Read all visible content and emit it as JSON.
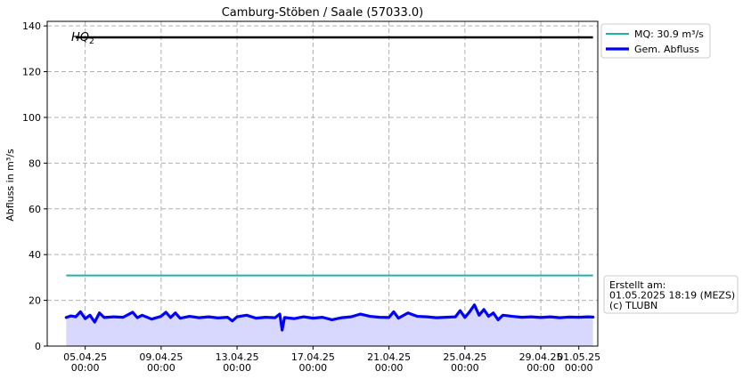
{
  "chart_data": {
    "type": "line",
    "title": "Camburg-Stöben / Saale (57033.0)",
    "xlabel": "",
    "ylabel": "Abfluss in m³/s",
    "ylim": [
      0,
      142
    ],
    "yticks": [
      0,
      20,
      40,
      60,
      80,
      100,
      120,
      140
    ],
    "xlim": [
      "2025-04-03T00:00",
      "2025-05-02T00:00"
    ],
    "xticks": [
      {
        "date": "2025-04-05T00:00",
        "label_date": "05.04.25",
        "label_time": "00:00"
      },
      {
        "date": "2025-04-09T00:00",
        "label_date": "09.04.25",
        "label_time": "00:00"
      },
      {
        "date": "2025-04-13T00:00",
        "label_date": "13.04.25",
        "label_time": "00:00"
      },
      {
        "date": "2025-04-17T00:00",
        "label_date": "17.04.25",
        "label_time": "00:00"
      },
      {
        "date": "2025-04-21T00:00",
        "label_date": "21.04.25",
        "label_time": "00:00"
      },
      {
        "date": "2025-04-25T00:00",
        "label_date": "25.04.25",
        "label_time": "00:00"
      },
      {
        "date": "2025-04-29T00:00",
        "label_date": "29.04.25",
        "label_time": "00:00"
      },
      {
        "date": "2025-05-01T00:00",
        "label_date": "01.05.25",
        "label_time": "00:00"
      }
    ],
    "grid": true,
    "legend": {
      "placement": "outside-top-right"
    },
    "reference_lines": [
      {
        "name": "HQ2",
        "label_main": "HQ",
        "label_sub": "2",
        "y": 135,
        "color": "#000000",
        "x_start": "2025-04-04T12:00",
        "x_end": "2025-05-01T18:00"
      },
      {
        "name": "MQ: 30.9 m³/s",
        "y": 30.9,
        "color": "#20b2aa",
        "x_start": "2025-04-04T00:00",
        "x_end": "2025-05-01T18:00"
      }
    ],
    "series": [
      {
        "name": "Gem. Abfluss",
        "color": "#0000ff",
        "fill_color": "#d8d8ff",
        "points": [
          [
            "2025-04-04T00:00",
            12.5
          ],
          [
            "2025-04-04T06:00",
            13.2
          ],
          [
            "2025-04-04T12:00",
            12.8
          ],
          [
            "2025-04-04T18:00",
            15.0
          ],
          [
            "2025-04-05T00:00",
            12.0
          ],
          [
            "2025-04-05T06:00",
            13.5
          ],
          [
            "2025-04-05T12:00",
            10.5
          ],
          [
            "2025-04-05T18:00",
            14.5
          ],
          [
            "2025-04-06T00:00",
            12.5
          ],
          [
            "2025-04-06T12:00",
            12.8
          ],
          [
            "2025-04-07T00:00",
            12.6
          ],
          [
            "2025-04-07T12:00",
            14.8
          ],
          [
            "2025-04-07T18:00",
            12.4
          ],
          [
            "2025-04-08T00:00",
            13.5
          ],
          [
            "2025-04-08T12:00",
            11.8
          ],
          [
            "2025-04-09T00:00",
            13.0
          ],
          [
            "2025-04-09T06:00",
            14.8
          ],
          [
            "2025-04-09T12:00",
            12.5
          ],
          [
            "2025-04-09T18:00",
            14.5
          ],
          [
            "2025-04-10T00:00",
            12.2
          ],
          [
            "2025-04-10T12:00",
            13.0
          ],
          [
            "2025-04-11T00:00",
            12.4
          ],
          [
            "2025-04-11T12:00",
            12.8
          ],
          [
            "2025-04-12T00:00",
            12.3
          ],
          [
            "2025-04-12T12:00",
            12.6
          ],
          [
            "2025-04-12T18:00",
            11.0
          ],
          [
            "2025-04-13T00:00",
            12.8
          ],
          [
            "2025-04-13T12:00",
            13.5
          ],
          [
            "2025-04-14T00:00",
            12.2
          ],
          [
            "2025-04-14T12:00",
            12.6
          ],
          [
            "2025-04-15T00:00",
            12.4
          ],
          [
            "2025-04-15T06:00",
            14.0
          ],
          [
            "2025-04-15T09:00",
            7.0
          ],
          [
            "2025-04-15T12:00",
            12.5
          ],
          [
            "2025-04-16T00:00",
            12.0
          ],
          [
            "2025-04-16T12:00",
            12.8
          ],
          [
            "2025-04-17T00:00",
            12.2
          ],
          [
            "2025-04-17T12:00",
            12.6
          ],
          [
            "2025-04-18T00:00",
            11.5
          ],
          [
            "2025-04-18T12:00",
            12.4
          ],
          [
            "2025-04-19T00:00",
            12.8
          ],
          [
            "2025-04-19T12:00",
            14.0
          ],
          [
            "2025-04-20T00:00",
            13.0
          ],
          [
            "2025-04-20T12:00",
            12.6
          ],
          [
            "2025-04-21T00:00",
            12.5
          ],
          [
            "2025-04-21T06:00",
            15.0
          ],
          [
            "2025-04-21T12:00",
            12.2
          ],
          [
            "2025-04-22T00:00",
            14.5
          ],
          [
            "2025-04-22T12:00",
            13.0
          ],
          [
            "2025-04-23T00:00",
            12.8
          ],
          [
            "2025-04-23T12:00",
            12.4
          ],
          [
            "2025-04-24T00:00",
            12.6
          ],
          [
            "2025-04-24T12:00",
            12.8
          ],
          [
            "2025-04-24T18:00",
            15.5
          ],
          [
            "2025-04-25T00:00",
            12.5
          ],
          [
            "2025-04-25T06:00",
            15.0
          ],
          [
            "2025-04-25T12:00",
            18.0
          ],
          [
            "2025-04-25T18:00",
            13.5
          ],
          [
            "2025-04-26T00:00",
            16.0
          ],
          [
            "2025-04-26T06:00",
            13.0
          ],
          [
            "2025-04-26T12:00",
            14.5
          ],
          [
            "2025-04-26T18:00",
            11.5
          ],
          [
            "2025-04-27T00:00",
            13.5
          ],
          [
            "2025-04-27T12:00",
            13.0
          ],
          [
            "2025-04-28T00:00",
            12.6
          ],
          [
            "2025-04-28T12:00",
            12.8
          ],
          [
            "2025-04-29T00:00",
            12.5
          ],
          [
            "2025-04-29T12:00",
            12.8
          ],
          [
            "2025-04-30T00:00",
            12.4
          ],
          [
            "2025-04-30T12:00",
            12.7
          ],
          [
            "2025-05-01T00:00",
            12.6
          ],
          [
            "2025-05-01T12:00",
            12.8
          ],
          [
            "2025-05-01T18:00",
            12.7
          ]
        ]
      }
    ],
    "annotation": {
      "lines": [
        "Erstellt am:",
        "01.05.2025 18:19 (MEZS)",
        "(c) TLUBN"
      ]
    }
  }
}
